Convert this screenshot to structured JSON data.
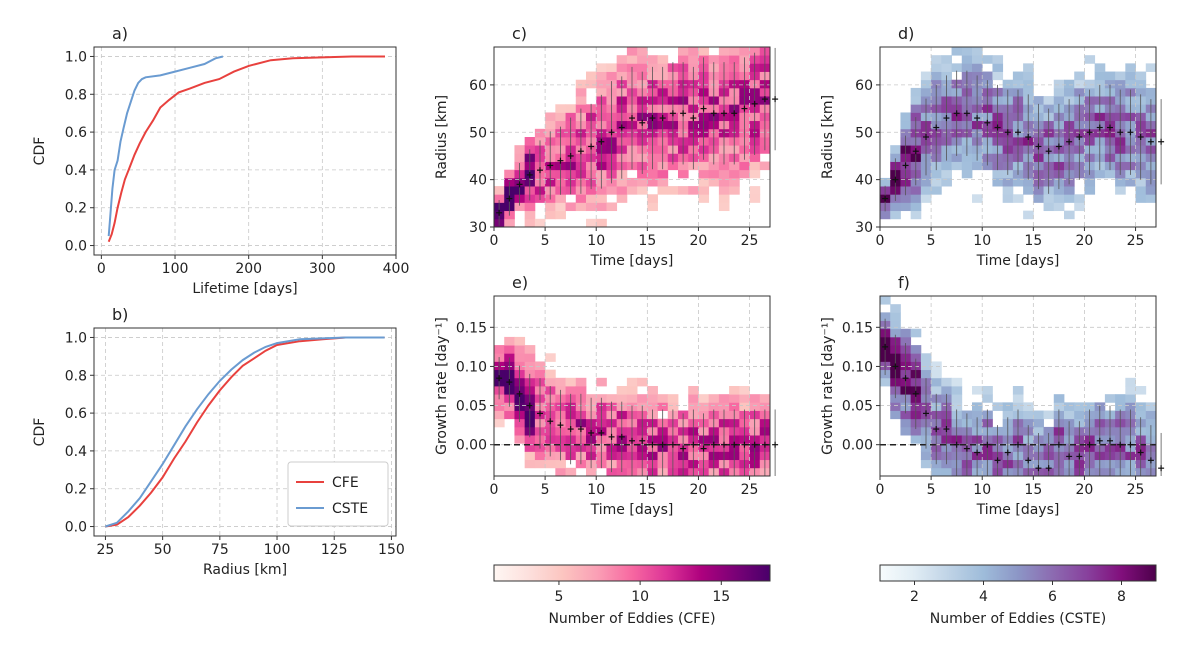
{
  "chart_data": [
    {
      "id": "a",
      "panel_label": "a)",
      "type": "line",
      "xlabel": "Lifetime [days]",
      "ylabel": "CDF",
      "xlim": [
        -10,
        400
      ],
      "ylim": [
        -0.05,
        1.05
      ],
      "xticks": [
        0,
        100,
        200,
        300,
        400
      ],
      "yticks": [
        0.0,
        0.2,
        0.4,
        0.6,
        0.8,
        1.0
      ],
      "grid": true,
      "series": [
        {
          "name": "CFE",
          "color": "#e8413e",
          "x": [
            10,
            14,
            18,
            22,
            27,
            32,
            38,
            45,
            52,
            60,
            70,
            80,
            92,
            105,
            120,
            140,
            160,
            180,
            200,
            230,
            260,
            300,
            340,
            385
          ],
          "y": [
            0.02,
            0.06,
            0.12,
            0.2,
            0.28,
            0.35,
            0.41,
            0.48,
            0.54,
            0.6,
            0.66,
            0.73,
            0.77,
            0.81,
            0.83,
            0.86,
            0.88,
            0.92,
            0.95,
            0.98,
            0.99,
            0.995,
            1.0,
            1.0
          ]
        },
        {
          "name": "CSTE",
          "color": "#6a9bd1",
          "x": [
            10,
            12,
            15,
            18,
            22,
            26,
            30,
            35,
            40,
            45,
            50,
            55,
            60,
            80,
            100,
            120,
            140,
            155,
            165
          ],
          "y": [
            0.05,
            0.15,
            0.3,
            0.4,
            0.45,
            0.55,
            0.62,
            0.7,
            0.76,
            0.82,
            0.86,
            0.88,
            0.89,
            0.9,
            0.92,
            0.94,
            0.96,
            0.99,
            1.0
          ]
        }
      ]
    },
    {
      "id": "b",
      "panel_label": "b)",
      "type": "line",
      "xlabel": "Radius [km]",
      "ylabel": "CDF",
      "xlim": [
        20,
        152
      ],
      "ylim": [
        -0.05,
        1.05
      ],
      "xticks": [
        25,
        50,
        75,
        100,
        125,
        150
      ],
      "yticks": [
        0.0,
        0.2,
        0.4,
        0.6,
        0.8,
        1.0
      ],
      "grid": true,
      "legend": "lower-right",
      "series": [
        {
          "name": "CFE",
          "color": "#e8413e",
          "x": [
            25,
            30,
            35,
            40,
            45,
            50,
            55,
            60,
            65,
            70,
            75,
            80,
            85,
            90,
            95,
            100,
            110,
            120,
            130,
            147
          ],
          "y": [
            0.0,
            0.01,
            0.05,
            0.11,
            0.18,
            0.26,
            0.36,
            0.45,
            0.55,
            0.64,
            0.72,
            0.79,
            0.85,
            0.89,
            0.93,
            0.96,
            0.98,
            0.99,
            1.0,
            1.0
          ]
        },
        {
          "name": "CSTE",
          "color": "#6a9bd1",
          "x": [
            25,
            30,
            35,
            40,
            45,
            50,
            55,
            60,
            65,
            70,
            75,
            80,
            85,
            90,
            95,
            100,
            110,
            120,
            130,
            147
          ],
          "y": [
            0.0,
            0.02,
            0.08,
            0.15,
            0.24,
            0.33,
            0.43,
            0.53,
            0.62,
            0.7,
            0.77,
            0.83,
            0.88,
            0.92,
            0.95,
            0.97,
            0.99,
            0.995,
            1.0,
            1.0
          ]
        }
      ]
    },
    {
      "id": "c",
      "panel_label": "c)",
      "type": "heatmap",
      "cmap": "RdPu",
      "xlabel": "Time [days]",
      "ylabel": "Radius [km]",
      "xlim": [
        0,
        27
      ],
      "ylim": [
        30,
        68
      ],
      "xticks": [
        0,
        5,
        10,
        15,
        20,
        25
      ],
      "yticks": [
        30,
        40,
        50,
        60
      ],
      "grid": true,
      "mean_curve": [
        33,
        36,
        39,
        41,
        42,
        43,
        44,
        45,
        46,
        47,
        48,
        50,
        51,
        53,
        52,
        53,
        53,
        54,
        54,
        53,
        55,
        54,
        54,
        54,
        55,
        56,
        57,
        57
      ],
      "spread": [
        3,
        4,
        5,
        6,
        7,
        8,
        8,
        9,
        10,
        10,
        11,
        12,
        12,
        12,
        12,
        12,
        12,
        12,
        12,
        12,
        12,
        12,
        12,
        12,
        12,
        12,
        12,
        12
      ]
    },
    {
      "id": "d",
      "panel_label": "d)",
      "type": "heatmap",
      "cmap": "BuPu",
      "xlabel": "Time [days]",
      "ylabel": "Radius [km]",
      "xlim": [
        0,
        27
      ],
      "ylim": [
        30,
        68
      ],
      "xticks": [
        0,
        5,
        10,
        15,
        20,
        25
      ],
      "yticks": [
        30,
        40,
        50,
        60
      ],
      "grid": true,
      "mean_curve": [
        36,
        40,
        43,
        46,
        49,
        51,
        53,
        54,
        54,
        53,
        52,
        51,
        50,
        50,
        49,
        47,
        46,
        47,
        48,
        49,
        50,
        51,
        51,
        50,
        50,
        49,
        48,
        48
      ],
      "spread": [
        3,
        5,
        7,
        8,
        9,
        10,
        10,
        10,
        10,
        10,
        10,
        10,
        10,
        10,
        10,
        10,
        10,
        10,
        10,
        10,
        10,
        10,
        10,
        10,
        10,
        10,
        10,
        10
      ]
    },
    {
      "id": "e",
      "panel_label": "e)",
      "type": "heatmap",
      "cmap": "RdPu",
      "xlabel": "Time [days]",
      "ylabel": "Growth rate [day⁻¹]",
      "xlim": [
        0,
        27
      ],
      "ylim": [
        -0.04,
        0.19
      ],
      "xticks": [
        0,
        5,
        10,
        15,
        20,
        25
      ],
      "yticks": [
        0.0,
        0.05,
        0.1,
        0.15
      ],
      "ytick_labels": [
        "0.00",
        "0.05",
        "0.10",
        "0.15"
      ],
      "grid": true,
      "zero_line": true,
      "mean_curve": [
        0.085,
        0.08,
        0.065,
        0.05,
        0.04,
        0.03,
        0.025,
        0.02,
        0.02,
        0.015,
        0.015,
        0.01,
        0.01,
        0.005,
        0.005,
        0.0,
        0.0,
        0.0,
        -0.005,
        0.0,
        -0.005,
        0.0,
        0.0,
        0.0,
        0.0,
        0.0,
        0.0,
        0.0
      ],
      "spread": [
        0.03,
        0.035,
        0.04,
        0.045,
        0.05,
        0.05,
        0.05,
        0.05,
        0.05,
        0.05,
        0.05,
        0.05,
        0.05,
        0.05,
        0.05,
        0.05,
        0.05,
        0.05,
        0.05,
        0.05,
        0.05,
        0.05,
        0.05,
        0.05,
        0.05,
        0.05,
        0.05,
        0.05
      ]
    },
    {
      "id": "f",
      "panel_label": "f)",
      "type": "heatmap",
      "cmap": "BuPu",
      "xlabel": "Time [days]",
      "ylabel": "Growth rate [day⁻¹]",
      "xlim": [
        0,
        27
      ],
      "ylim": [
        -0.04,
        0.19
      ],
      "xticks": [
        0,
        5,
        10,
        15,
        20,
        25
      ],
      "yticks": [
        0.0,
        0.05,
        0.1,
        0.15
      ],
      "ytick_labels": [
        "0.00",
        "0.05",
        "0.10",
        "0.15"
      ],
      "grid": true,
      "zero_line": true,
      "mean_curve": [
        0.125,
        0.1,
        0.085,
        0.065,
        0.04,
        0.02,
        0.02,
        0.0,
        -0.005,
        -0.01,
        0.0,
        -0.02,
        -0.01,
        0.0,
        -0.02,
        -0.03,
        -0.03,
        0.0,
        -0.015,
        -0.015,
        0.0,
        0.005,
        0.005,
        0.0,
        0.0,
        -0.01,
        -0.02,
        -0.03
      ],
      "spread": [
        0.04,
        0.045,
        0.05,
        0.05,
        0.05,
        0.05,
        0.05,
        0.05,
        0.05,
        0.05,
        0.05,
        0.05,
        0.05,
        0.05,
        0.05,
        0.05,
        0.05,
        0.05,
        0.05,
        0.05,
        0.05,
        0.05,
        0.05,
        0.05,
        0.05,
        0.05,
        0.05,
        0.05
      ]
    }
  ],
  "colorbars": [
    {
      "id": "cfe",
      "label": "Number of Eddies (CFE)",
      "cmap": "RdPu",
      "range": [
        1,
        18
      ],
      "ticks": [
        5,
        10,
        15
      ]
    },
    {
      "id": "cste",
      "label": "Number of Eddies (CSTE)",
      "cmap": "BuPu",
      "range": [
        1,
        9
      ],
      "ticks": [
        2,
        4,
        6,
        8
      ]
    }
  ],
  "colors": {
    "cfe": "#e8413e",
    "cste": "#6a9bd1",
    "rdpu": [
      "#fff7f3",
      "#fde0dd",
      "#fcc5c0",
      "#fa9fb5",
      "#f768a1",
      "#dd3497",
      "#ae017e",
      "#7a0177",
      "#49006a"
    ],
    "bupu": [
      "#f7fcfd",
      "#e0ecf4",
      "#bfd3e6",
      "#9ebcda",
      "#8c96c6",
      "#8c6bb1",
      "#88419d",
      "#810f7c",
      "#4d004b"
    ]
  }
}
